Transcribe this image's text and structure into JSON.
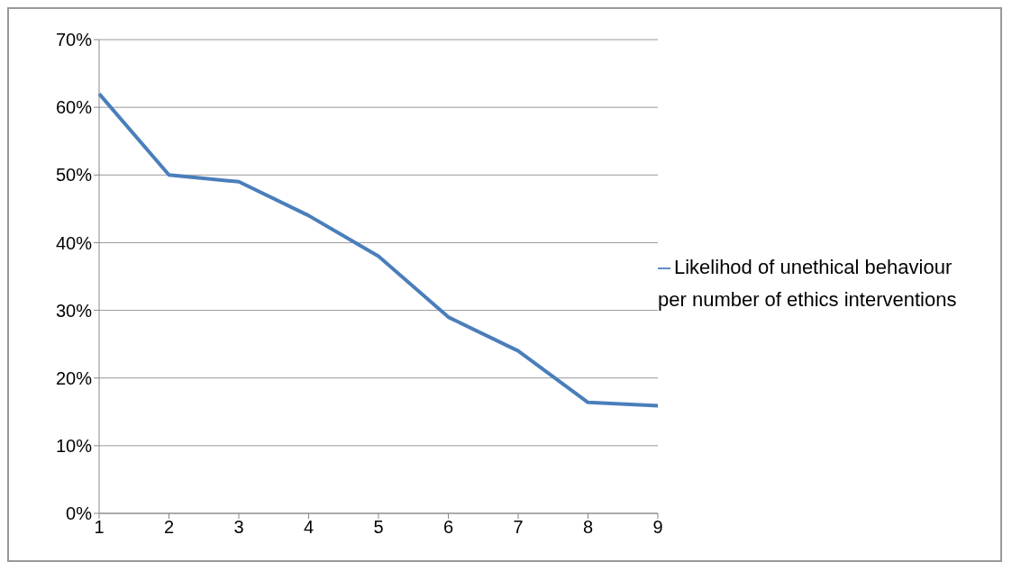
{
  "chart_data": {
    "type": "line",
    "categories": [
      "1",
      "2",
      "3",
      "4",
      "5",
      "6",
      "7",
      "8",
      "9"
    ],
    "series": [
      {
        "name": "Likelihod of unethical behaviour per number of ethics interventions",
        "color": "#4a7ebb",
        "values": [
          62,
          50,
          49,
          44,
          38,
          29,
          24,
          16.4,
          15.9
        ]
      }
    ],
    "ylim": [
      0,
      70
    ],
    "yticks": [
      {
        "value": 0,
        "label": "0%"
      },
      {
        "value": 10,
        "label": "10%"
      },
      {
        "value": 20,
        "label": "20%"
      },
      {
        "value": 30,
        "label": "30%"
      },
      {
        "value": 40,
        "label": "40%"
      },
      {
        "value": 50,
        "label": "50%"
      },
      {
        "value": 60,
        "label": "60%"
      },
      {
        "value": 70,
        "label": "70%"
      }
    ],
    "grid": "y",
    "legend": "right",
    "marker": "none",
    "line_style": "solid"
  }
}
